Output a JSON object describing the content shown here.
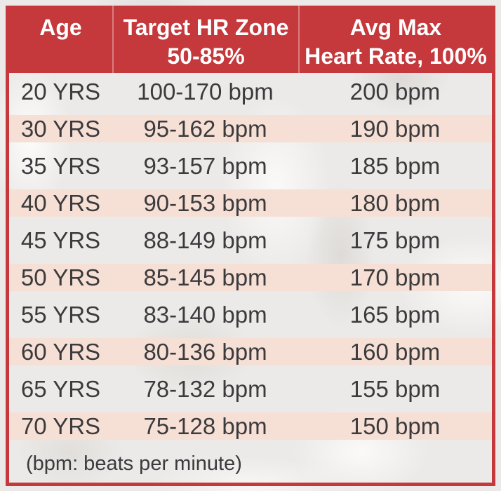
{
  "table": {
    "header": {
      "columns": [
        {
          "line1": "Age",
          "line2": ""
        },
        {
          "line1": "Target HR Zone",
          "line2": "50-85%"
        },
        {
          "line1": "Avg Max",
          "line2": "Heart Rate, 100%"
        }
      ]
    },
    "rows": [
      {
        "age": "20 YRS",
        "zone": "100-170 bpm",
        "max": "200 bpm"
      },
      {
        "age": "30 YRS",
        "zone": "95-162 bpm",
        "max": "190 bpm"
      },
      {
        "age": "35 YRS",
        "zone": "93-157 bpm",
        "max": "185 bpm"
      },
      {
        "age": "40 YRS",
        "zone": "90-153 bpm",
        "max": "180 bpm"
      },
      {
        "age": "45 YRS",
        "zone": "88-149 bpm",
        "max": "175 bpm"
      },
      {
        "age": "50 YRS",
        "zone": "85-145 bpm",
        "max": "170 bpm"
      },
      {
        "age": "55 YRS",
        "zone": "83-140 bpm",
        "max": "165 bpm"
      },
      {
        "age": "60 YRS",
        "zone": "80-136 bpm",
        "max": "160 bpm"
      },
      {
        "age": "65 YRS",
        "zone": "78-132 bpm",
        "max": "155 bpm"
      },
      {
        "age": "70 YRS",
        "zone": "75-128 bpm",
        "max": "150 bpm"
      }
    ],
    "footnote": "(bpm: beats per minute)"
  },
  "colors": {
    "header_red": "#C5383C",
    "border_red": "#C5383C",
    "row_pink": "#F6E0D6",
    "text_dark": "#3B3A3C",
    "header_text": "#FFFFFF"
  }
}
